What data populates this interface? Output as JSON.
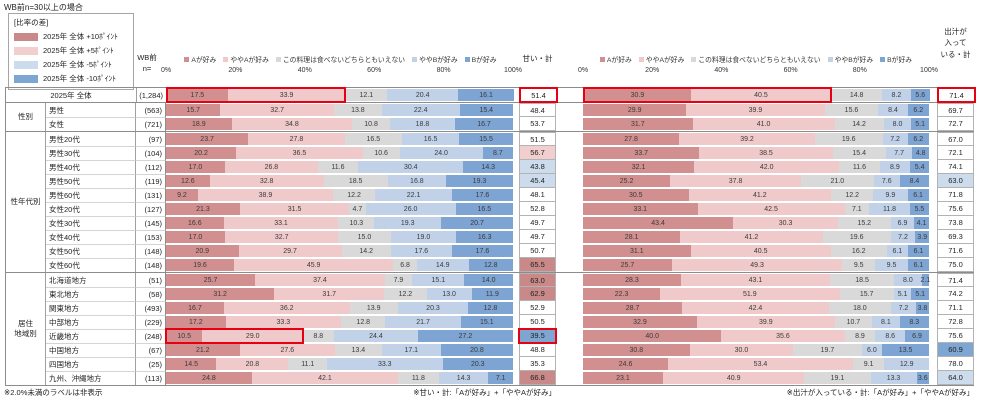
{
  "top_note": "WB前n=30以上の場合",
  "diff_legend": {
    "title": "[比率の差]",
    "items": [
      {
        "label": "2025年 全体 +10ﾎﾟｲﾝﾄ",
        "color": "#c98989"
      },
      {
        "label": "2025年 全体 +5ﾎﾟｲﾝﾄ",
        "color": "#f2cfcf"
      },
      {
        "label": "2025年 全体 -5ﾎﾟｲﾝﾄ",
        "color": "#ccdcec"
      },
      {
        "label": "2025年 全体 -10ﾎﾟｲﾝﾄ",
        "color": "#7ea6d2"
      }
    ]
  },
  "wb_n_label": "WB前\nn=",
  "axis_ticks": [
    "0%",
    "20%",
    "40%",
    "60%",
    "80%",
    "100%"
  ],
  "colors": {
    "segments": [
      "#d18f8f",
      "#f0caca",
      "#d9d9d9",
      "#c1d2e8",
      "#7da4d2"
    ],
    "diff_plus10": "#c98989",
    "diff_plus5": "#f2cfcf",
    "diff_minus5": "#ccdcec",
    "diff_minus10": "#7ea6d2",
    "annotation_box": "#e60012"
  },
  "notes": {
    "left": "※2.0%未満のラベルは非表示",
    "center": "※甘い・計:「Aが好み」+「ややAが好み」",
    "right": "※出汁が入っている・計:「Aが好み」+「ややAが好み」"
  },
  "chart_data": {
    "type": "bar",
    "subtype": "stacked-horizontal-100pct",
    "xlim": [
      0,
      100
    ],
    "series_names": [
      "Aが好み",
      "ややAが好み",
      "この料理は食べないどちらともいえない",
      "ややBが好み",
      "Bが好み"
    ],
    "groups": [
      {
        "label": "",
        "span": 1
      },
      {
        "label": "性別",
        "span": 2
      },
      {
        "label": "性年代別",
        "span": 10
      },
      {
        "label": "居住\n地域別",
        "span": 8
      }
    ],
    "categories": [
      "2025年 全体",
      "男性",
      "女性",
      "男性20代",
      "男性30代",
      "男性40代",
      "男性50代",
      "男性60代",
      "女性20代",
      "女性30代",
      "女性40代",
      "女性50代",
      "女性60代",
      "北海道地方",
      "東北地方",
      "関東地方",
      "中部地方",
      "近畿地方",
      "中国地方",
      "四国地方",
      "九州、沖縄地方"
    ],
    "n": [
      "(1,284)",
      "(563)",
      "(721)",
      "(97)",
      "(104)",
      "(112)",
      "(119)",
      "(131)",
      "(127)",
      "(145)",
      "(153)",
      "(148)",
      "(148)",
      "(51)",
      "(58)",
      "(493)",
      "(229)",
      "(248)",
      "(67)",
      "(25)",
      "(113)"
    ],
    "charts": [
      {
        "total_header": "甘い・計",
        "values": [
          [
            17.5,
            33.9,
            12.1,
            20.4,
            16.1
          ],
          [
            15.7,
            32.7,
            13.8,
            22.4,
            15.4
          ],
          [
            18.9,
            34.8,
            10.8,
            18.8,
            16.7
          ],
          [
            23.7,
            27.8,
            16.5,
            16.5,
            15.5
          ],
          [
            20.2,
            36.5,
            10.6,
            24.0,
            8.7
          ],
          [
            17.0,
            26.8,
            11.6,
            30.4,
            14.3
          ],
          [
            12.6,
            32.8,
            18.5,
            16.8,
            19.3
          ],
          [
            9.2,
            38.9,
            12.2,
            22.1,
            17.6
          ],
          [
            21.3,
            31.5,
            4.7,
            26.0,
            16.5
          ],
          [
            16.6,
            33.1,
            10.3,
            19.3,
            20.7
          ],
          [
            17.0,
            32.7,
            15.0,
            19.0,
            16.3
          ],
          [
            20.9,
            29.7,
            14.2,
            17.6,
            17.6
          ],
          [
            19.6,
            45.9,
            6.8,
            14.9,
            12.8
          ],
          [
            25.7,
            37.4,
            7.9,
            15.1,
            14.0
          ],
          [
            31.2,
            31.7,
            12.2,
            13.0,
            11.9
          ],
          [
            16.7,
            36.2,
            13.9,
            20.3,
            12.8
          ],
          [
            17.2,
            33.3,
            12.8,
            21.7,
            15.1
          ],
          [
            10.5,
            29.0,
            8.8,
            24.4,
            27.2
          ],
          [
            21.2,
            27.6,
            13.4,
            17.1,
            20.8
          ],
          [
            14.5,
            20.8,
            11.1,
            33.3,
            20.3
          ],
          [
            24.8,
            42.1,
            11.8,
            14.3,
            7.1
          ]
        ],
        "totals": [
          51.4,
          48.4,
          53.7,
          51.5,
          56.7,
          43.8,
          45.4,
          48.1,
          52.8,
          49.7,
          49.7,
          50.7,
          65.5,
          63.0,
          62.9,
          52.9,
          50.5,
          39.5,
          48.8,
          35.3,
          66.8
        ],
        "highlights": [
          "",
          "",
          "",
          "",
          "+5",
          "-5",
          "-5",
          "",
          "",
          "",
          "",
          "",
          "+10",
          "+10",
          "+10",
          "",
          "",
          "-10",
          "",
          "",
          "+10"
        ],
        "boxed_rows": [
          0,
          17
        ],
        "boxed_totals": [
          0,
          17
        ]
      },
      {
        "total_header": "出汁が\n入って\nいる・計",
        "values": [
          [
            30.9,
            40.5,
            14.8,
            8.2,
            5.6
          ],
          [
            29.9,
            39.9,
            15.6,
            8.4,
            6.2
          ],
          [
            31.7,
            41.0,
            14.2,
            8.0,
            5.1
          ],
          [
            27.8,
            39.2,
            19.6,
            7.2,
            6.2
          ],
          [
            33.7,
            38.5,
            15.4,
            7.7,
            4.8
          ],
          [
            32.1,
            42.0,
            11.6,
            8.9,
            5.4
          ],
          [
            25.2,
            37.8,
            21.0,
            7.6,
            8.4
          ],
          [
            30.5,
            41.2,
            12.2,
            9.9,
            6.1
          ],
          [
            33.1,
            42.5,
            7.1,
            11.8,
            5.5
          ],
          [
            43.4,
            30.3,
            15.2,
            6.9,
            4.1
          ],
          [
            28.1,
            41.2,
            19.6,
            7.2,
            3.9
          ],
          [
            31.1,
            40.5,
            16.2,
            6.1,
            6.1
          ],
          [
            25.7,
            49.3,
            9.5,
            9.5,
            6.1
          ],
          [
            28.3,
            43.1,
            18.5,
            8.0,
            2.1
          ],
          [
            22.3,
            51.9,
            15.7,
            5.1,
            5.1
          ],
          [
            28.7,
            42.4,
            18.0,
            7.2,
            3.8
          ],
          [
            32.9,
            39.9,
            10.7,
            8.1,
            8.3
          ],
          [
            40.0,
            35.6,
            8.9,
            8.6,
            6.9
          ],
          [
            30.8,
            30.0,
            19.7,
            6.0,
            13.5
          ],
          [
            24.6,
            53.4,
            9.1,
            12.9,
            0.0
          ],
          [
            23.1,
            40.9,
            19.1,
            13.3,
            3.6
          ]
        ],
        "totals": [
          71.4,
          69.7,
          72.7,
          67.0,
          72.1,
          74.1,
          63.0,
          71.8,
          75.6,
          73.8,
          69.3,
          71.6,
          75.0,
          71.4,
          74.2,
          71.1,
          72.8,
          75.6,
          60.9,
          78.0,
          64.0
        ],
        "highlights": [
          "",
          "",
          "",
          "",
          "",
          "",
          "-5",
          "",
          "",
          "",
          "",
          "",
          "",
          "",
          "",
          "",
          "",
          "",
          "-10",
          "",
          "-5"
        ],
        "boxed_rows": [
          0
        ],
        "boxed_totals": [
          0
        ]
      }
    ]
  }
}
